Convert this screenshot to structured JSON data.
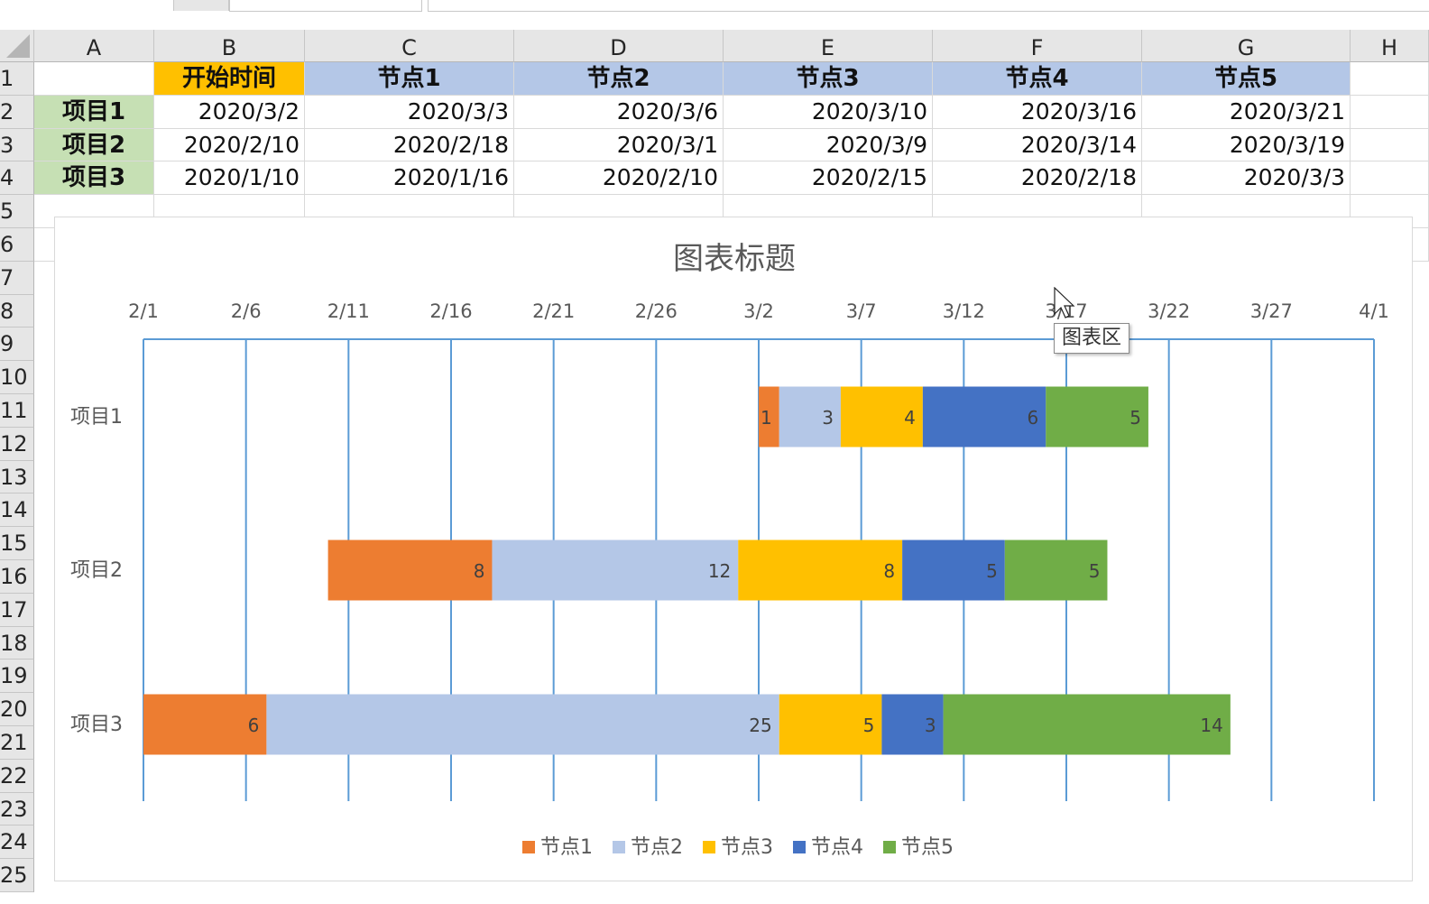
{
  "columns": [
    "A",
    "B",
    "C",
    "D",
    "E",
    "F",
    "G",
    "H"
  ],
  "rows": [
    "1",
    "2",
    "3",
    "4",
    "5",
    "6",
    "7",
    "8",
    "9",
    "10",
    "11",
    "12",
    "13",
    "14",
    "15",
    "16",
    "17",
    "18",
    "19",
    "20",
    "21",
    "22",
    "23",
    "24",
    "25"
  ],
  "table": {
    "header": [
      "",
      "开始时间",
      "节点1",
      "节点2",
      "节点3",
      "节点4",
      "节点5"
    ],
    "body": [
      [
        "项目1",
        "2020/3/2",
        "2020/3/3",
        "2020/3/6",
        "2020/3/10",
        "2020/3/16",
        "2020/3/21"
      ],
      [
        "项目2",
        "2020/2/10",
        "2020/2/18",
        "2020/3/1",
        "2020/3/9",
        "2020/3/14",
        "2020/3/19"
      ],
      [
        "项目3",
        "2020/1/10",
        "2020/1/16",
        "2020/2/10",
        "2020/2/15",
        "2020/2/18",
        "2020/3/3"
      ]
    ]
  },
  "colors": {
    "header_start": "#FFC000",
    "header_node": "#B4C7E7",
    "row_label": "#C6E0B4",
    "gridline": "#5B9BD5"
  },
  "tooltip": "图表区",
  "chart_data": {
    "type": "bar",
    "orientation": "horizontal-stacked",
    "title": "图表标题",
    "x_axis_position": "top",
    "x_ticks": [
      "2/1",
      "2/6",
      "2/11",
      "2/16",
      "2/21",
      "2/26",
      "3/2",
      "3/7",
      "3/12",
      "3/17",
      "3/22",
      "3/27",
      "4/1"
    ],
    "xlim": [
      "2020-02-01",
      "2020-04-01"
    ],
    "categories": [
      "项目1",
      "项目2",
      "项目3"
    ],
    "bar_start": [
      "2020-03-02",
      "2020-02-10",
      "2020-02-01"
    ],
    "series": [
      {
        "name": "节点1",
        "color": "#ED7D31",
        "values": [
          1,
          8,
          6
        ]
      },
      {
        "name": "节点2",
        "color": "#B4C7E7",
        "values": [
          3,
          12,
          25
        ]
      },
      {
        "name": "节点3",
        "color": "#FFC000",
        "values": [
          4,
          8,
          5
        ]
      },
      {
        "name": "节点4",
        "color": "#4472C4",
        "values": [
          6,
          5,
          3
        ]
      },
      {
        "name": "节点5",
        "color": "#70AD47",
        "values": [
          5,
          5,
          14
        ]
      }
    ],
    "legend_position": "bottom",
    "grid": "vertical"
  }
}
